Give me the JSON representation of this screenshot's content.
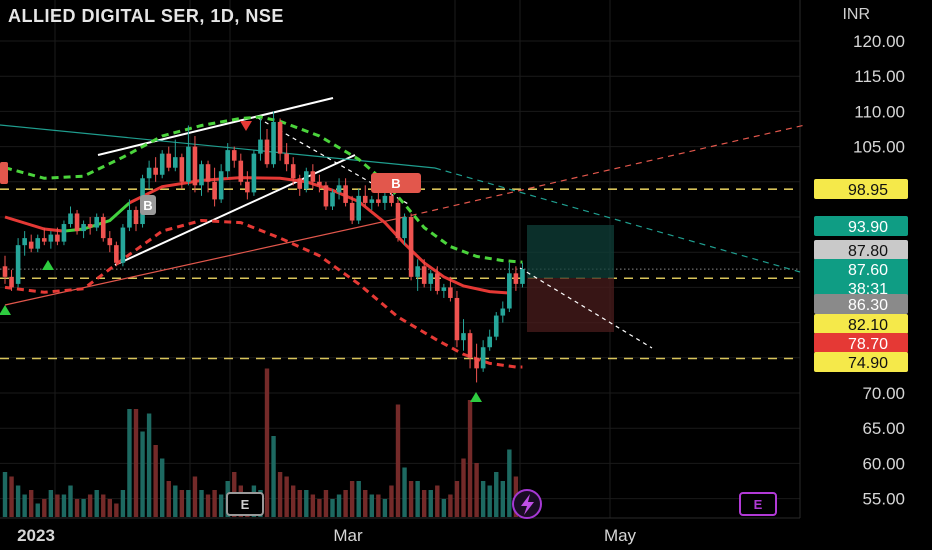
{
  "header": {
    "symbol_title": "ALLIED DIGITAL SER, 1D, NSE",
    "currency": "INR"
  },
  "colors": {
    "up": "#26a69a",
    "down": "#ef5350",
    "ma_red": "#e53935",
    "ma_green": "#43d13f",
    "band_red": "#e53935",
    "band_green": "#4bd43c",
    "yellow_dash": "#d8c45a",
    "tag_yellow": "#f5e94a",
    "tag_teal": "#0f9d84",
    "tag_gray": "#8a8a8a",
    "tag_light": "#c9c9c9",
    "tag_red": "#e53935"
  },
  "chart_data": {
    "type": "candlestick",
    "title": "ALLIED DIGITAL SER, 1D, NSE",
    "ylabel": "INR",
    "ylim": [
      52.8,
      122.9
    ],
    "y_ticks": [
      "120.00",
      "115.00",
      "110.00",
      "105.00",
      "70.00",
      "65.00",
      "60.00",
      "55.00"
    ],
    "x_ticks": [
      "2023",
      "Mar",
      "May"
    ],
    "horizontal_levels": [
      98.95,
      86.3,
      74.9
    ],
    "price_tags": [
      {
        "label": "98.95",
        "value": 98.95,
        "style": "yellow"
      },
      {
        "label": "93.90",
        "value": 93.9,
        "style": "teal"
      },
      {
        "label": "87.80",
        "value": 87.8,
        "style": "light"
      },
      {
        "label": "87.60",
        "sub": "38:31",
        "value": 87.6,
        "style": "teal"
      },
      {
        "label": "86.30",
        "value": 86.3,
        "style": "gray"
      },
      {
        "label": "82.10",
        "value": 82.1,
        "style": "yellow"
      },
      {
        "label": "78.70",
        "value": 78.7,
        "style": "red"
      },
      {
        "label": "74.90",
        "value": 74.9,
        "style": "yellow"
      }
    ],
    "signal_labels": [
      "B",
      "B"
    ],
    "event_markers": [
      "E",
      "E"
    ],
    "candles": [
      [
        88.0,
        89.5,
        85.5,
        86.5
      ],
      [
        86.5,
        87.5,
        84.5,
        85.0
      ],
      [
        85.5,
        92.0,
        85.0,
        91.0
      ],
      [
        91.0,
        93.0,
        89.5,
        92.0
      ],
      [
        91.5,
        92.5,
        90.0,
        90.5
      ],
      [
        90.5,
        92.5,
        90.0,
        92.0
      ],
      [
        92.0,
        93.5,
        91.0,
        91.5
      ],
      [
        91.5,
        93.0,
        90.5,
        92.5
      ],
      [
        92.5,
        93.5,
        91.0,
        91.5
      ],
      [
        91.5,
        94.5,
        91.0,
        94.0
      ],
      [
        94.0,
        96.5,
        93.5,
        95.5
      ],
      [
        95.5,
        96.0,
        92.5,
        93.0
      ],
      [
        93.0,
        94.5,
        92.0,
        94.0
      ],
      [
        94.0,
        95.0,
        92.5,
        93.5
      ],
      [
        93.5,
        95.5,
        93.0,
        95.0
      ],
      [
        95.0,
        95.5,
        91.5,
        92.0
      ],
      [
        92.0,
        93.0,
        90.0,
        91.0
      ],
      [
        91.0,
        91.5,
        88.0,
        88.5
      ],
      [
        88.5,
        94.0,
        88.0,
        93.5
      ],
      [
        93.5,
        97.5,
        93.0,
        96.0
      ],
      [
        96.0,
        96.5,
        93.0,
        94.0
      ],
      [
        94.0,
        101.0,
        93.5,
        100.5
      ],
      [
        100.5,
        103.0,
        99.0,
        102.0
      ],
      [
        102.0,
        103.5,
        100.0,
        101.0
      ],
      [
        101.0,
        104.5,
        100.5,
        104.0
      ],
      [
        104.0,
        105.0,
        101.5,
        102.0
      ],
      [
        102.0,
        106.0,
        101.5,
        103.5
      ],
      [
        103.5,
        104.0,
        99.0,
        100.0
      ],
      [
        100.0,
        108.0,
        99.5,
        105.0
      ],
      [
        105.0,
        106.5,
        98.5,
        99.5
      ],
      [
        99.5,
        103.0,
        98.0,
        102.5
      ],
      [
        102.5,
        103.0,
        98.5,
        100.0
      ],
      [
        100.0,
        102.0,
        96.5,
        97.5
      ],
      [
        97.5,
        102.5,
        97.0,
        101.5
      ],
      [
        101.5,
        105.5,
        100.5,
        104.5
      ],
      [
        104.5,
        105.0,
        102.0,
        103.0
      ],
      [
        103.0,
        104.0,
        99.5,
        100.0
      ],
      [
        100.0,
        101.5,
        97.5,
        98.5
      ],
      [
        98.5,
        104.5,
        98.0,
        104.0
      ],
      [
        104.0,
        109.0,
        103.0,
        106.0
      ],
      [
        106.0,
        107.5,
        102.0,
        102.5
      ],
      [
        102.5,
        110.0,
        102.0,
        108.5
      ],
      [
        108.5,
        109.0,
        103.0,
        104.0
      ],
      [
        104.0,
        105.5,
        101.5,
        102.5
      ],
      [
        102.5,
        103.5,
        99.5,
        100.5
      ],
      [
        100.5,
        101.0,
        98.0,
        99.0
      ],
      [
        99.0,
        102.0,
        98.5,
        101.5
      ],
      [
        101.5,
        102.5,
        99.0,
        100.0
      ],
      [
        100.0,
        101.0,
        98.5,
        99.5
      ],
      [
        99.5,
        100.0,
        96.0,
        96.5
      ],
      [
        96.5,
        99.0,
        96.0,
        98.5
      ],
      [
        98.5,
        100.5,
        97.5,
        99.5
      ],
      [
        99.5,
        100.5,
        96.5,
        97.0
      ],
      [
        97.0,
        98.0,
        94.0,
        94.5
      ],
      [
        94.5,
        99.0,
        94.0,
        98.0
      ],
      [
        98.0,
        99.5,
        96.5,
        97.0
      ],
      [
        97.0,
        98.0,
        96.0,
        97.5
      ],
      [
        97.5,
        98.5,
        96.5,
        97.0
      ],
      [
        97.0,
        98.5,
        96.0,
        98.0
      ],
      [
        98.0,
        99.0,
        96.5,
        97.0
      ],
      [
        97.0,
        97.5,
        91.5,
        92.0
      ],
      [
        92.0,
        95.5,
        91.0,
        95.0
      ],
      [
        95.0,
        95.5,
        86.0,
        86.5
      ],
      [
        86.5,
        89.0,
        84.5,
        88.0
      ],
      [
        88.0,
        89.0,
        85.0,
        85.5
      ],
      [
        85.5,
        87.5,
        84.5,
        87.0
      ],
      [
        87.0,
        88.0,
        84.0,
        84.5
      ],
      [
        84.5,
        85.5,
        83.5,
        85.0
      ],
      [
        85.0,
        86.5,
        83.0,
        83.5
      ],
      [
        83.5,
        84.5,
        76.5,
        77.5
      ],
      [
        77.5,
        80.5,
        76.0,
        78.5
      ],
      [
        78.5,
        79.0,
        73.5,
        75.0
      ],
      [
        75.0,
        77.0,
        71.5,
        73.5
      ],
      [
        73.5,
        77.5,
        73.0,
        76.5
      ],
      [
        76.5,
        79.0,
        76.0,
        78.0
      ],
      [
        78.0,
        81.5,
        77.5,
        81.0
      ],
      [
        81.0,
        83.0,
        80.0,
        82.0
      ],
      [
        82.0,
        88.5,
        81.5,
        87.0
      ],
      [
        87.0,
        88.0,
        84.5,
        85.5
      ],
      [
        85.5,
        88.5,
        85.0,
        87.6
      ]
    ],
    "volume": [
      [
        5.0,
        1
      ],
      [
        4.5,
        0
      ],
      [
        3.5,
        1
      ],
      [
        2.5,
        1
      ],
      [
        3.0,
        0
      ],
      [
        1.5,
        1
      ],
      [
        2.0,
        0
      ],
      [
        3.0,
        1
      ],
      [
        2.5,
        0
      ],
      [
        2.5,
        1
      ],
      [
        3.5,
        1
      ],
      [
        2.0,
        0
      ],
      [
        2.0,
        1
      ],
      [
        2.5,
        0
      ],
      [
        3.0,
        1
      ],
      [
        2.5,
        0
      ],
      [
        2.0,
        0
      ],
      [
        1.5,
        0
      ],
      [
        3.0,
        1
      ],
      [
        12.0,
        1
      ],
      [
        12.0,
        0
      ],
      [
        9.5,
        1
      ],
      [
        11.5,
        1
      ],
      [
        8.0,
        0
      ],
      [
        6.5,
        1
      ],
      [
        4.0,
        0
      ],
      [
        3.5,
        1
      ],
      [
        3.0,
        0
      ],
      [
        3.0,
        1
      ],
      [
        4.5,
        0
      ],
      [
        3.0,
        1
      ],
      [
        2.5,
        0
      ],
      [
        3.0,
        0
      ],
      [
        2.5,
        1
      ],
      [
        4.0,
        1
      ],
      [
        5.0,
        0
      ],
      [
        3.5,
        0
      ],
      [
        2.5,
        0
      ],
      [
        3.5,
        1
      ],
      [
        3.0,
        1
      ],
      [
        16.5,
        0
      ],
      [
        9.0,
        1
      ],
      [
        5.0,
        0
      ],
      [
        4.5,
        0
      ],
      [
        3.5,
        0
      ],
      [
        3.0,
        0
      ],
      [
        3.0,
        1
      ],
      [
        2.5,
        0
      ],
      [
        2.0,
        0
      ],
      [
        3.0,
        0
      ],
      [
        2.0,
        1
      ],
      [
        2.5,
        1
      ],
      [
        3.0,
        0
      ],
      [
        4.0,
        0
      ],
      [
        4.0,
        1
      ],
      [
        3.0,
        0
      ],
      [
        2.5,
        1
      ],
      [
        2.5,
        0
      ],
      [
        2.0,
        1
      ],
      [
        3.5,
        0
      ],
      [
        12.5,
        0
      ],
      [
        5.5,
        1
      ],
      [
        4.0,
        0
      ],
      [
        4.0,
        1
      ],
      [
        3.0,
        0
      ],
      [
        3.0,
        1
      ],
      [
        3.5,
        0
      ],
      [
        2.0,
        1
      ],
      [
        2.5,
        0
      ],
      [
        4.0,
        0
      ],
      [
        6.5,
        0
      ],
      [
        13.0,
        0
      ],
      [
        6.0,
        0
      ],
      [
        4.0,
        1
      ],
      [
        3.5,
        1
      ],
      [
        5.0,
        1
      ],
      [
        4.0,
        1
      ],
      [
        7.5,
        1
      ],
      [
        4.5,
        0
      ],
      [
        2.5,
        1
      ]
    ]
  }
}
